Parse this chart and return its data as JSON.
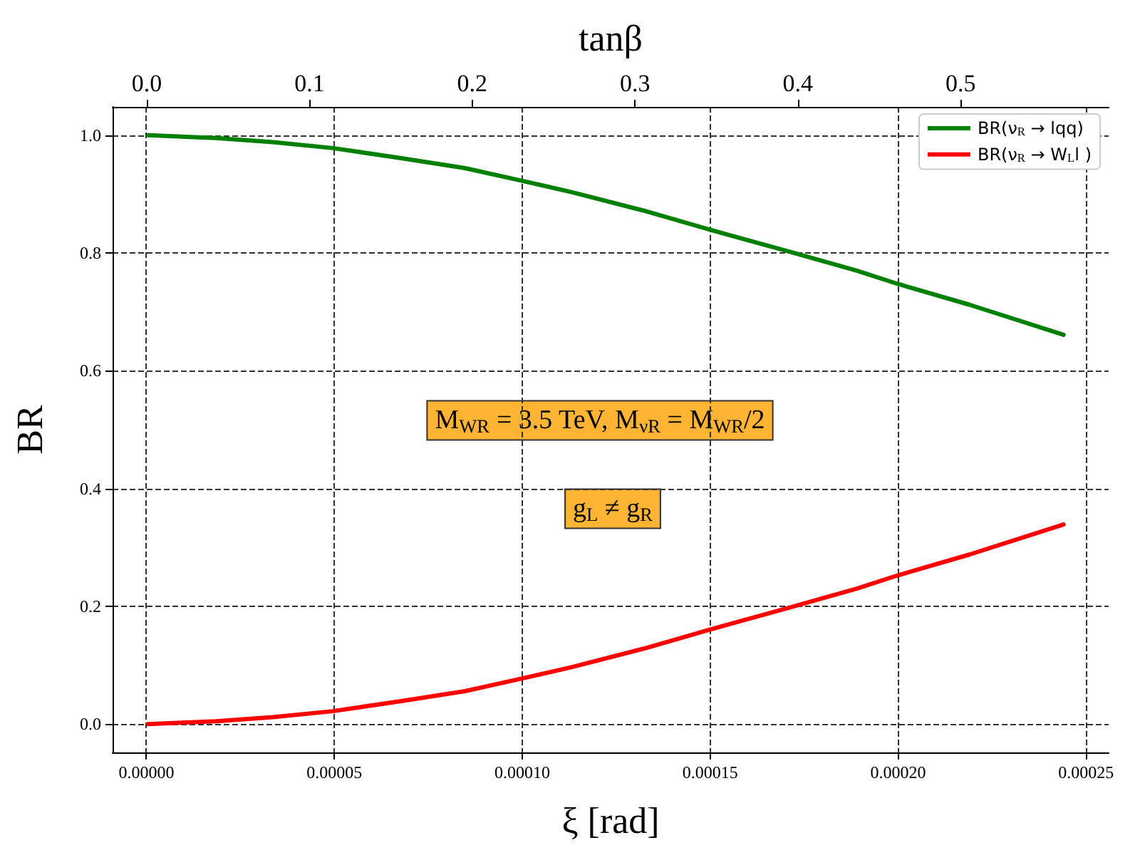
{
  "chart_data": {
    "type": "line",
    "x2label": "tanβ",
    "xlabel": "ξ [rad]",
    "ylabel": "BR",
    "x": [
      5e-07,
      1.86e-05,
      3.37e-05,
      4.96e-05,
      6.78e-05,
      8.48e-05,
      9.96e-05,
      0.0001133,
      0.0001322,
      0.0001496,
      0.00017,
      0.000189,
      0.0001996,
      0.000219,
      0.000244
    ],
    "series": [
      {
        "name": "BR(ν$_{R}$ → lqq)",
        "color": "#008000",
        "values": [
          1.0,
          0.995,
          0.988,
          0.978,
          0.961,
          0.944,
          0.923,
          0.903,
          0.872,
          0.84,
          0.804,
          0.77,
          0.748,
          0.712,
          0.661
        ]
      },
      {
        "name": "BR(ν$_{R}$ → W$_{L}$l )",
        "color": "#ff0000",
        "values": [
          0.0,
          0.005,
          0.012,
          0.022,
          0.039,
          0.056,
          0.077,
          0.097,
          0.128,
          0.16,
          0.196,
          0.23,
          0.252,
          0.288,
          0.339
        ]
      }
    ],
    "xlim": [
      -9e-06,
      0.000256
    ],
    "xticks": [
      {
        "value": 0,
        "label": "0.00000"
      },
      {
        "value": 5e-05,
        "label": "0.00005"
      },
      {
        "value": 0.0001,
        "label": "0.00010"
      },
      {
        "value": 0.00015,
        "label": "0.00015"
      },
      {
        "value": 0.0002,
        "label": "0.00020"
      },
      {
        "value": 0.00025,
        "label": "0.00025"
      }
    ],
    "x2lim": [
      -0.021,
      0.591
    ],
    "x2ticks": [
      {
        "value": 0,
        "label": "0.0"
      },
      0.1,
      0.2,
      0.3,
      0.4,
      0.5
    ],
    "ylim": [
      -0.048,
      1.048
    ],
    "yticks": [
      {
        "value": 0,
        "label": "0.0"
      },
      0.2,
      0.4,
      0.6,
      0.8,
      {
        "value": 1,
        "label": "1.0"
      }
    ],
    "annotations": [
      "M$_{WR}$ = 3.5 TeV, M$_{νR}$ = M$_{WR}$/2",
      "g$_{L}$ ≠ g$_{R}$"
    ],
    "grid": true,
    "legend": "top right",
    "marker": "none",
    "line_style": "solid"
  }
}
